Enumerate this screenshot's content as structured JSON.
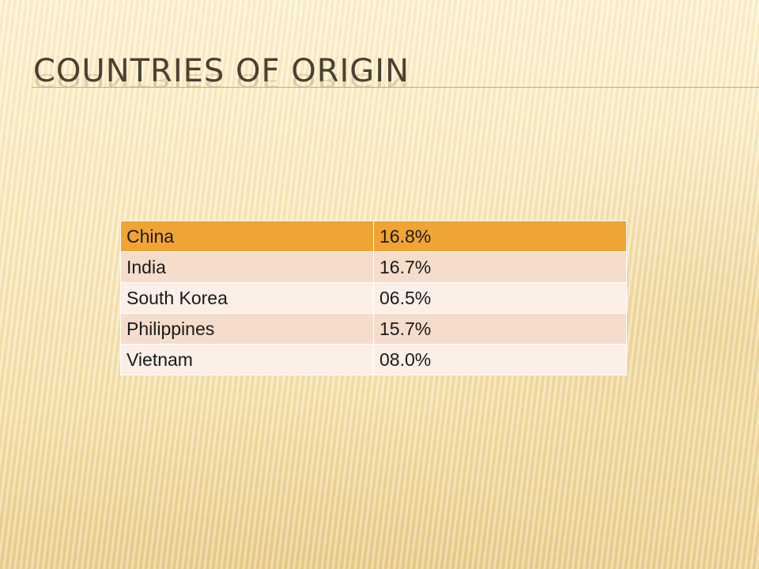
{
  "slide": {
    "title": "COUNTRIES OF ORIGIN"
  },
  "table": {
    "rows": [
      {
        "country": "China",
        "percent": "16.8%"
      },
      {
        "country": "India",
        "percent": "16.7%"
      },
      {
        "country": "South Korea",
        "percent": "06.5%"
      },
      {
        "country": "Philippines",
        "percent": "15.7%"
      },
      {
        "country": "Vietnam",
        "percent": "08.0%"
      }
    ]
  },
  "colors": {
    "header_row": "#f0a433",
    "band_odd": "#f6dccb",
    "band_even": "#fbefe7",
    "title_text": "#4a4032",
    "title_rule": "#e0a948"
  }
}
